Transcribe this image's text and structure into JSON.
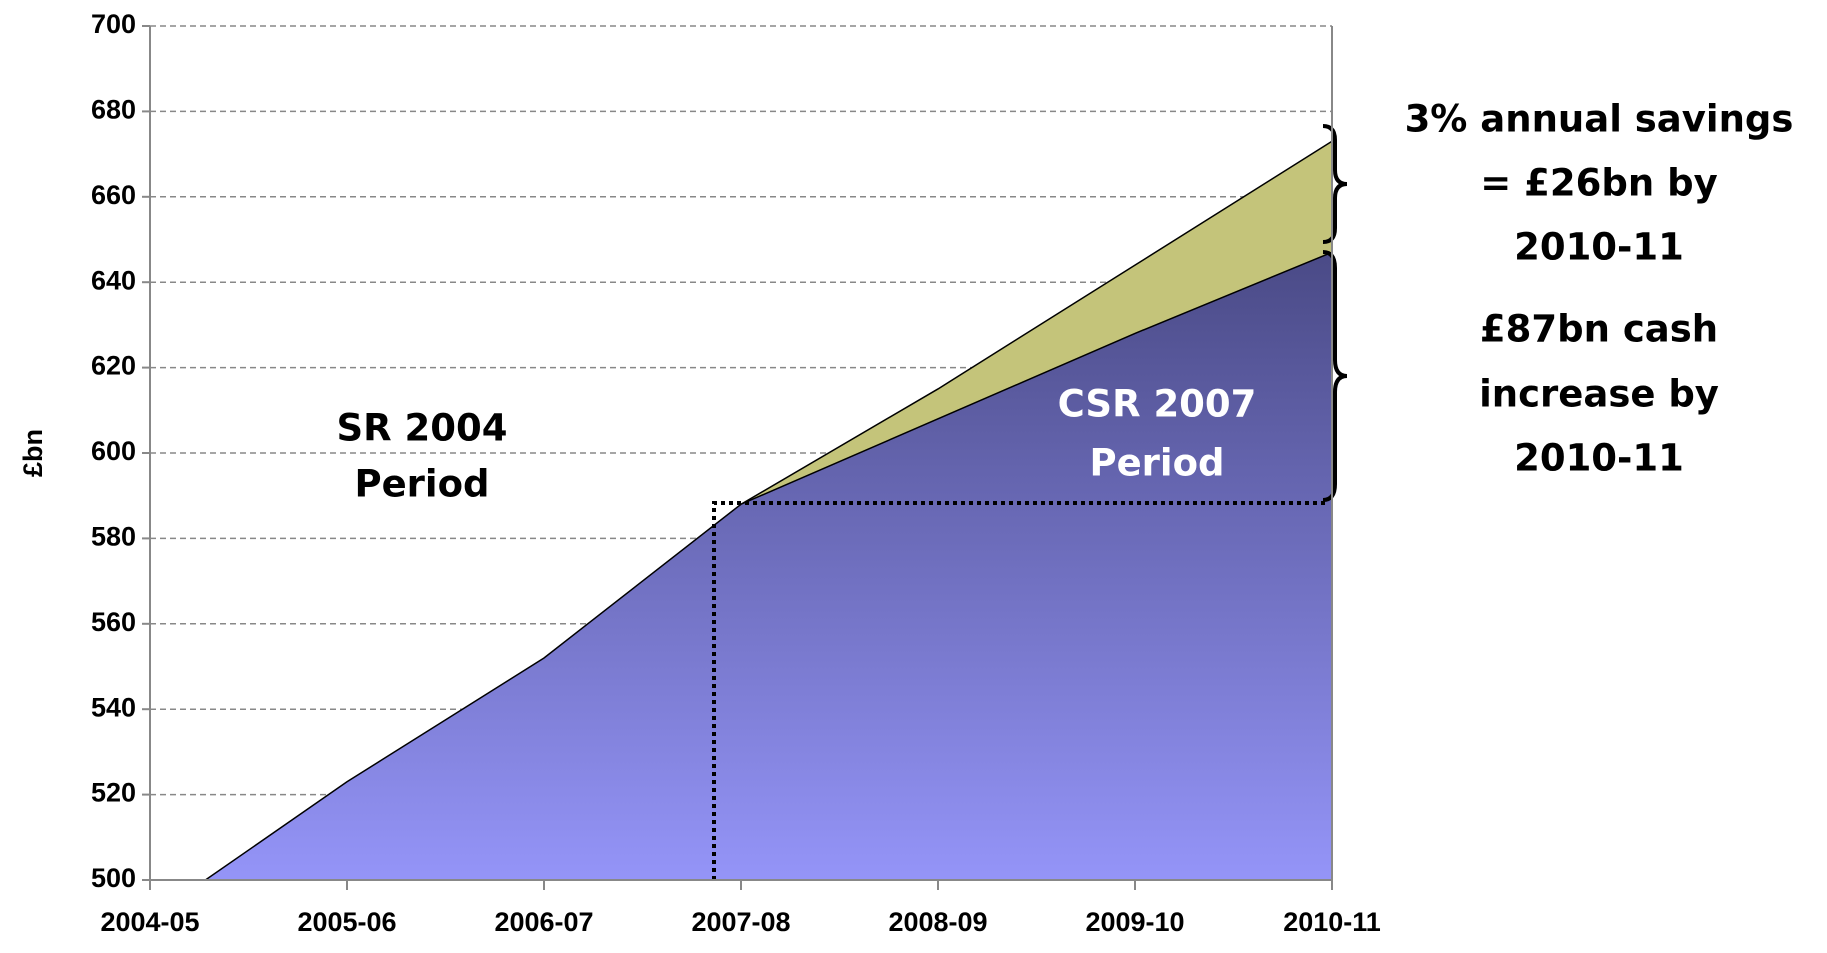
{
  "chart_data": {
    "type": "area",
    "y_label": "£bn",
    "categories": [
      "2004-05",
      "2005-06",
      "2006-07",
      "2007-08",
      "2008-09",
      "2009-10",
      "2010-11"
    ],
    "series": [
      {
        "color": "#c4c47a",
        "values": [
          null,
          null,
          null,
          588,
          615,
          644,
          673
        ]
      },
      {
        "color": "#9999ff",
        "values": [
          491,
          523,
          552,
          588,
          608,
          628,
          647
        ]
      }
    ],
    "ylim": [
      500,
      700
    ],
    "yticks": [
      500,
      520,
      540,
      560,
      580,
      600,
      620,
      640,
      660,
      680,
      700
    ],
    "grid": true,
    "annotations": [
      {
        "lines": [
          "SR 2004",
          "Period"
        ]
      },
      {
        "lines": [
          "CSR 2007",
          "Period"
        ]
      },
      {
        "lines": [
          "3% annual savings",
          "= £26bn by",
          "2010-11"
        ]
      },
      {
        "lines": [
          "£87bn cash",
          "increase by",
          "2010-11"
        ]
      }
    ]
  }
}
